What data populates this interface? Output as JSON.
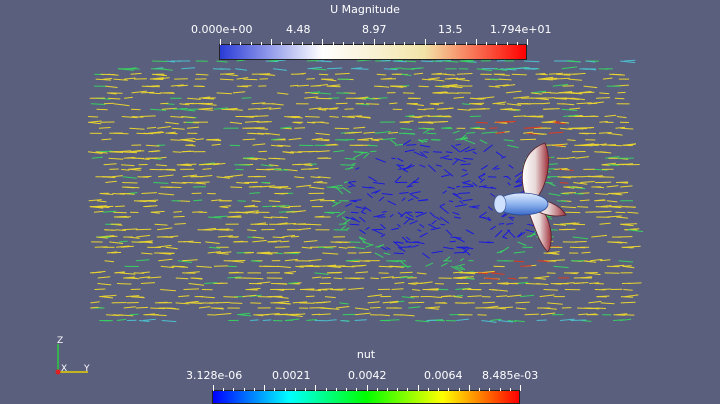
{
  "colorbar_top": {
    "title": "U Magnitude",
    "ticks": [
      "0.000e+00",
      "4.48",
      "8.97",
      "13.5",
      "1.794e+01"
    ],
    "colors": [
      "#2a3bd6",
      "#ffffff",
      "#f2e4a8",
      "#ff0000"
    ]
  },
  "colorbar_bottom": {
    "title": "nut",
    "ticks": [
      "3.128e-06",
      "0.0021",
      "0.0042",
      "0.0064",
      "8.485e-03"
    ],
    "colors": [
      "#0000ff",
      "#00ffff",
      "#00ff00",
      "#ffff00",
      "#ff0000"
    ]
  },
  "axes_triad": {
    "z": "Z",
    "x": "X",
    "y": "Y"
  },
  "scene": {
    "background": "#5a5f7e",
    "vector_colors": {
      "low": "#1a1adf",
      "mid": "#38d060",
      "high": "#e8d330",
      "max": "#e03a1c"
    },
    "object": "propeller"
  }
}
